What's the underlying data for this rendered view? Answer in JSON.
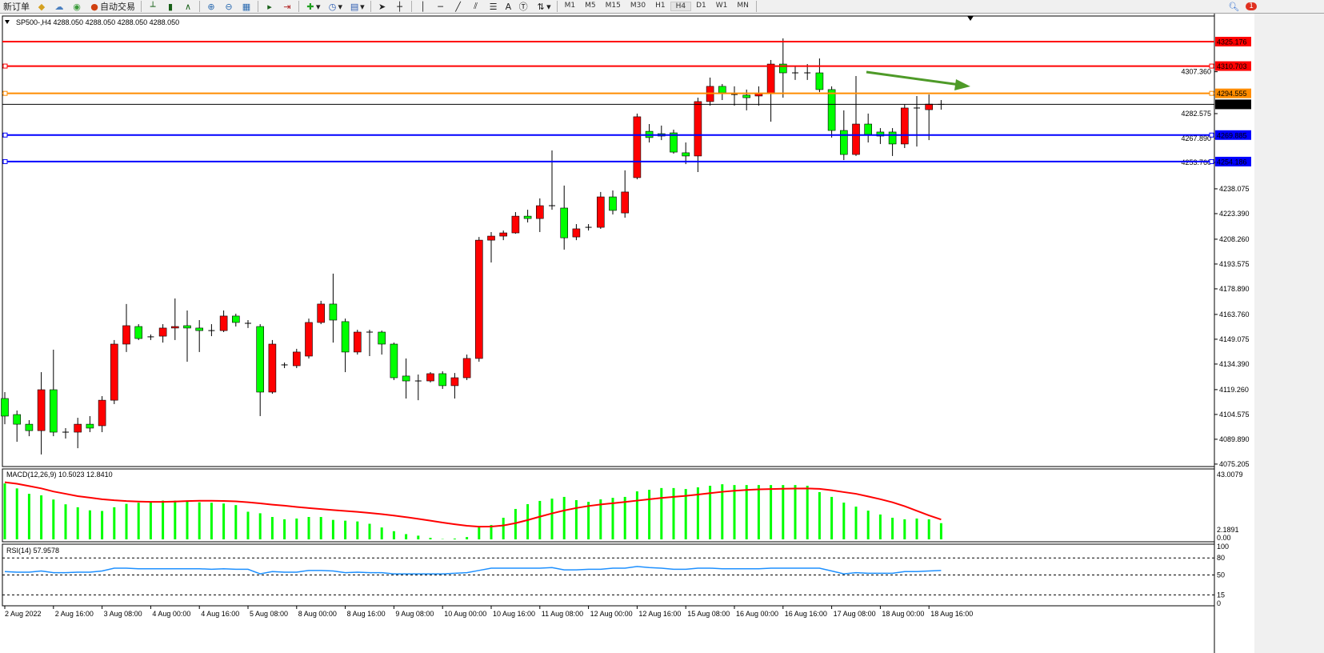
{
  "toolbar": {
    "new_order_label": "新订单",
    "autotrading_label": "自动交易",
    "icons": [
      "gold-icon",
      "cloud-icon",
      "signal-icon",
      "autotrading-icon",
      "bar-chart-icon",
      "candlestick-icon",
      "line-chart-icon",
      "zoom-in-icon",
      "zoom-out-icon",
      "tile-windows-icon",
      "autoscroll-icon",
      "chart-shift-icon",
      "indicators-icon",
      "periods-icon",
      "templates-icon",
      "cursor-icon",
      "crosshair-icon",
      "vertical-line-icon",
      "horizontal-line-icon",
      "trendline-icon",
      "equidistant-channel-icon",
      "fibonacci-icon",
      "text-icon",
      "text-label-icon",
      "shapes-icon"
    ],
    "text_tool": "A",
    "timeframes": [
      "M1",
      "M5",
      "M15",
      "M30",
      "H1",
      "H4",
      "D1",
      "W1",
      "MN"
    ],
    "active_timeframe": "H4",
    "notification_count": "1"
  },
  "chart": {
    "header": "SP500-,H4  4288.050 4288.050 4288.050 4288.050",
    "colors": {
      "bull": "#ff0000",
      "bear": "#00ff00",
      "grid": "#000000",
      "background": "#ffffff",
      "arrow": "#4e9a28"
    },
    "price_ticks": [
      "4307.360",
      "4282.575",
      "4267.890",
      "4253.760",
      "4238.075",
      "4223.390",
      "4208.260",
      "4193.575",
      "4178.890",
      "4163.760",
      "4149.075",
      "4134.390",
      "4119.260",
      "4104.575",
      "4089.890",
      "4075.205"
    ],
    "levels": [
      {
        "price": "4325.176",
        "color": "#ff0000"
      },
      {
        "price": "4310.703",
        "color": "#ff0000"
      },
      {
        "price": "4294.555",
        "color": "#ff8c00"
      },
      {
        "price": "4288.050",
        "color": "#000000"
      },
      {
        "price": "4269.885",
        "color": "#0000ff"
      },
      {
        "price": "4254.186",
        "color": "#0000ff"
      }
    ],
    "candles": [
      [
        4114.0,
        4103.6,
        4117.8,
        4098.8
      ],
      [
        4104.5,
        4098.8,
        4106.9,
        4088.4
      ],
      [
        4098.8,
        4095.0,
        4101.2,
        4091.7
      ],
      [
        4095.0,
        4119.2,
        4129.6,
        4080.9
      ],
      [
        4119.2,
        4094.1,
        4142.9,
        4091.7
      ],
      [
        4094.1,
        4094.1,
        4096.5,
        4090.3
      ],
      [
        4094.1,
        4098.8,
        4102.6,
        4084.6
      ],
      [
        4098.8,
        4096.5,
        4103.6,
        4094.1
      ],
      [
        4097.9,
        4113.0,
        4115.4,
        4094.1
      ],
      [
        4113.0,
        4146.2,
        4148.6,
        4110.7
      ],
      [
        4146.2,
        4157.1,
        4169.9,
        4141.5
      ],
      [
        4156.6,
        4149.5,
        4158.0,
        4148.6
      ],
      [
        4150.5,
        4150.5,
        4151.9,
        4148.6
      ],
      [
        4150.9,
        4155.7,
        4158.0,
        4147.1
      ],
      [
        4155.7,
        4156.6,
        4173.2,
        4148.6
      ],
      [
        4157.1,
        4155.7,
        4166.1,
        4135.8
      ],
      [
        4155.7,
        4154.2,
        4160.4,
        4141.5
      ],
      [
        4154.2,
        4154.2,
        4158.0,
        4150.9
      ],
      [
        4154.2,
        4162.8,
        4166.1,
        4153.3
      ],
      [
        4162.8,
        4159.0,
        4164.2,
        4156.6
      ],
      [
        4158.5,
        4158.5,
        4160.4,
        4155.7
      ],
      [
        4156.6,
        4117.8,
        4158.0,
        4103.6
      ],
      [
        4117.8,
        4146.2,
        4148.6,
        4116.8
      ],
      [
        4133.9,
        4133.9,
        4135.3,
        4132.0
      ],
      [
        4133.4,
        4141.5,
        4143.4,
        4132.0
      ],
      [
        4139.1,
        4159.0,
        4161.3,
        4137.7
      ],
      [
        4159.0,
        4169.9,
        4171.8,
        4158.0
      ],
      [
        4169.9,
        4160.4,
        4187.9,
        4147.1
      ],
      [
        4159.5,
        4141.5,
        4161.3,
        4129.6
      ],
      [
        4141.5,
        4153.3,
        4154.7,
        4140.0
      ],
      [
        4153.3,
        4153.3,
        4154.7,
        4139.1
      ],
      [
        4153.3,
        4146.2,
        4154.2,
        4140.0
      ],
      [
        4146.2,
        4126.3,
        4147.1,
        4124.9
      ],
      [
        4127.3,
        4124.4,
        4137.7,
        4114.0
      ],
      [
        4124.4,
        4124.4,
        4128.2,
        4113.0
      ],
      [
        4124.4,
        4128.7,
        4129.6,
        4123.5
      ],
      [
        4128.7,
        4121.6,
        4130.1,
        4119.7
      ],
      [
        4121.6,
        4126.3,
        4129.1,
        4114.0
      ],
      [
        4126.3,
        4137.7,
        4140.0,
        4124.9
      ],
      [
        4137.7,
        4207.7,
        4209.6,
        4135.8
      ],
      [
        4207.7,
        4210.1,
        4212.5,
        4194.5
      ],
      [
        4210.1,
        4212.0,
        4213.4,
        4207.7
      ],
      [
        4212.0,
        4221.9,
        4224.3,
        4211.5
      ],
      [
        4221.9,
        4220.5,
        4225.7,
        4218.2
      ],
      [
        4220.5,
        4228.1,
        4232.4,
        4212.5
      ],
      [
        4228.1,
        4228.1,
        4260.8,
        4225.7
      ],
      [
        4226.7,
        4209.1,
        4240.0,
        4202.1
      ],
      [
        4209.6,
        4214.4,
        4217.2,
        4207.7
      ],
      [
        4215.3,
        4215.3,
        4217.2,
        4213.4
      ],
      [
        4215.3,
        4233.3,
        4236.2,
        4214.4
      ],
      [
        4233.3,
        4225.3,
        4237.1,
        4222.9
      ],
      [
        4223.8,
        4236.2,
        4249.0,
        4221.0
      ],
      [
        4244.7,
        4280.7,
        4282.6,
        4243.7
      ],
      [
        4272.1,
        4268.4,
        4276.4,
        4265.5
      ],
      [
        4270.7,
        4269.3,
        4275.5,
        4266.9
      ],
      [
        4271.2,
        4259.8,
        4273.1,
        4258.9
      ],
      [
        4259.4,
        4257.5,
        4265.5,
        4252.7
      ],
      [
        4257.5,
        4289.7,
        4292.0,
        4248.0
      ],
      [
        4289.7,
        4298.7,
        4303.9,
        4287.3
      ],
      [
        4298.7,
        4294.9,
        4300.1,
        4290.6
      ],
      [
        4293.9,
        4293.9,
        4298.7,
        4287.3
      ],
      [
        4293.5,
        4292.0,
        4296.8,
        4284.5
      ],
      [
        4293.0,
        4294.4,
        4298.7,
        4287.3
      ],
      [
        4294.4,
        4311.9,
        4314.3,
        4277.8
      ],
      [
        4311.9,
        4306.7,
        4327.1,
        4292.0
      ],
      [
        4306.7,
        4306.7,
        4311.0,
        4302.5
      ],
      [
        4306.7,
        4306.7,
        4311.9,
        4302.5
      ],
      [
        4306.7,
        4296.8,
        4315.2,
        4295.3
      ],
      [
        4296.8,
        4272.6,
        4298.7,
        4268.4
      ],
      [
        4272.6,
        4258.4,
        4284.5,
        4255.1
      ],
      [
        4258.4,
        4276.4,
        4304.8,
        4257.5
      ],
      [
        4276.4,
        4270.2,
        4282.6,
        4265.5
      ],
      [
        4271.7,
        4269.3,
        4274.0,
        4264.6
      ],
      [
        4271.7,
        4264.6,
        4274.0,
        4257.5
      ],
      [
        4264.6,
        4285.9,
        4288.2,
        4262.2
      ],
      [
        4285.9,
        4285.9,
        4293.0,
        4263.1
      ],
      [
        4284.9,
        4288.2,
        4293.9,
        4266.9
      ],
      [
        4288.05,
        4288.05,
        4290.6,
        4284.9
      ]
    ],
    "time_labels": [
      "2 Aug 2022",
      "2 Aug 16:00",
      "3 Aug 08:00",
      "4 Aug 00:00",
      "4 Aug 16:00",
      "5 Aug 08:00",
      "8 Aug 00:00",
      "8 Aug 16:00",
      "9 Aug 08:00",
      "10 Aug 00:00",
      "10 Aug 16:00",
      "11 Aug 08:00",
      "12 Aug 00:00",
      "12 Aug 16:00",
      "15 Aug 08:00",
      "16 Aug 00:00",
      "16 Aug 16:00",
      "17 Aug 08:00",
      "18 Aug 00:00",
      "18 Aug 16:00"
    ]
  },
  "macd": {
    "label": "MACD(12,26,9) 10.5023 12.8410",
    "max_label": "43.0079",
    "min_label": "0.00",
    "min_label2": "2.1891",
    "max": 43.0079,
    "hist_color": "#00ff00",
    "signal_color": "#ff0000",
    "histogram": [
      36.2,
      33.0,
      29.5,
      28.5,
      25.8,
      22.7,
      20.8,
      18.8,
      18.4,
      20.8,
      23.0,
      23.7,
      24.6,
      25.1,
      25.1,
      25.1,
      24.0,
      23.7,
      23.2,
      22.2,
      17.9,
      16.9,
      14.5,
      13.0,
      13.5,
      14.5,
      14.5,
      12.6,
      12.1,
      11.6,
      10.1,
      7.7,
      5.3,
      3.4,
      2.4,
      1.0,
      0.2,
      0.5,
      1.5,
      7.8,
      9.3,
      14.0,
      19.7,
      22.8,
      24.9,
      26.4,
      27.5,
      25.4,
      24.3,
      25.9,
      26.9,
      27.5,
      31.1,
      32.1,
      33.2,
      33.2,
      32.6,
      33.7,
      34.7,
      35.7,
      35.2,
      35.2,
      35.2,
      35.2,
      35.2,
      35.2,
      34.7,
      30.6,
      27.5,
      23.8,
      21.2,
      18.6,
      16.1,
      14.0,
      13.0,
      13.5,
      13.0,
      10.5023
    ],
    "signal": [
      37,
      36,
      34.5,
      33,
      31,
      29.5,
      28,
      27,
      26,
      25.3,
      24.8,
      24.5,
      24.3,
      24.3,
      24.5,
      24.8,
      25,
      25,
      24.9,
      24.6,
      24,
      23.3,
      22.5,
      21.8,
      21,
      20.3,
      19.6,
      19,
      18.4,
      17.8,
      17.1,
      16.3,
      15.4,
      14.4,
      13.3,
      12.1,
      10.9,
      9.8,
      8.8,
      8.2,
      8.3,
      9,
      10.5,
      12.5,
      14.7,
      16.8,
      18.7,
      20.3,
      21.6,
      22.6,
      23.4,
      24.2,
      25.1,
      26,
      26.8,
      27.5,
      28.2,
      29,
      29.9,
      30.8,
      31.5,
      32,
      32.4,
      32.6,
      32.8,
      32.9,
      33,
      32.7,
      31.8,
      30.6,
      29.5,
      27.8,
      26,
      24,
      21.5,
      18.5,
      15.5,
      12.841
    ]
  },
  "rsi": {
    "label": "RSI(14) 57.9578",
    "levels": [
      "100",
      "80",
      "50",
      "15",
      "0"
    ],
    "color": "#1e90ff",
    "values": [
      56,
      55,
      55,
      57,
      54,
      54,
      55,
      55,
      57,
      62,
      62,
      61,
      61,
      61,
      61,
      61,
      61,
      60,
      61,
      60,
      60,
      52,
      56,
      55,
      55,
      58,
      58,
      57,
      54,
      55,
      54,
      54,
      52,
      52,
      52,
      52,
      52,
      53,
      54,
      58,
      62,
      62,
      62,
      62,
      62,
      63,
      59,
      59,
      60,
      60,
      62,
      62,
      65,
      63,
      62,
      60,
      60,
      62,
      62,
      61,
      61,
      61,
      61,
      62,
      62,
      62,
      62,
      62,
      57,
      52,
      54,
      53,
      53,
      53,
      56,
      56,
      57,
      57.9578
    ]
  }
}
